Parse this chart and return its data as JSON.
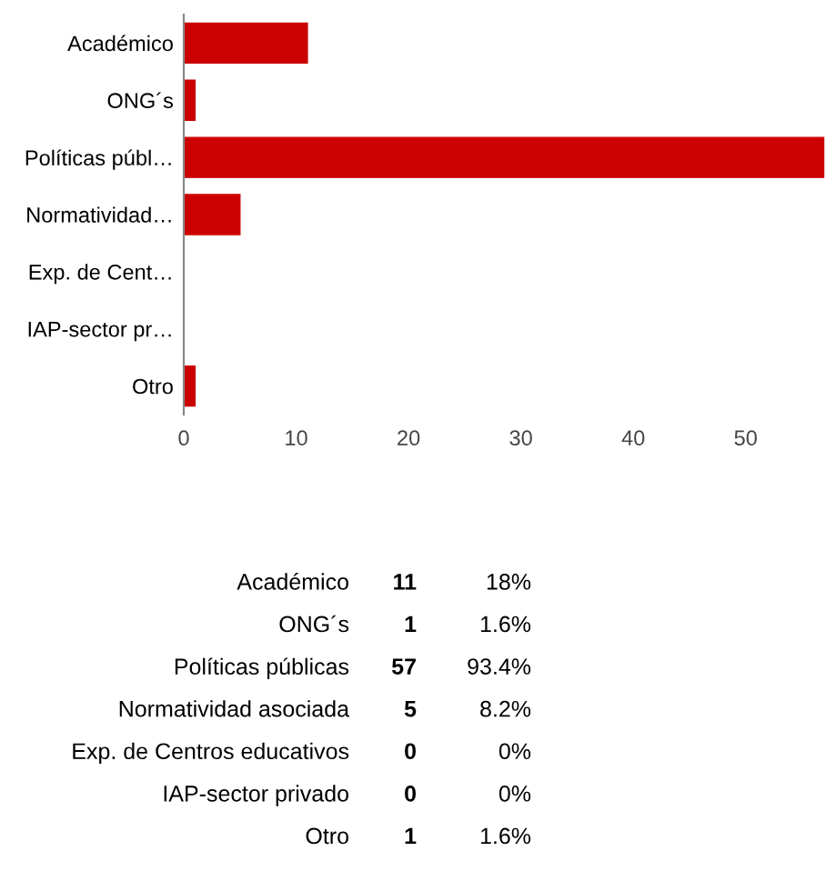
{
  "chart_data": {
    "type": "bar",
    "orientation": "horizontal",
    "categories": [
      "Académico",
      "ONG´s",
      "Políticas públ…",
      "Normatividad…",
      "Exp. de Cent…",
      "IAP-sector pr…",
      "Otro"
    ],
    "values": [
      11,
      1,
      57,
      5,
      0,
      0,
      1
    ],
    "color": "#cc0000",
    "xlim": [
      0,
      57
    ],
    "xticks": [
      0,
      10,
      20,
      30,
      40,
      50
    ],
    "grid": false,
    "annotations": [
      "Académico",
      "11",
      "18%",
      "ONG´s",
      "1",
      "1.6%",
      "Políticas públicas",
      "57",
      "93.4%",
      "Normatividad asociada",
      "5",
      "8.2%",
      "Exp. de Centros educativos",
      "0",
      "0%",
      "IAP-sector privado",
      "0",
      "0%",
      "Otro",
      "1",
      "1.6%"
    ]
  }
}
